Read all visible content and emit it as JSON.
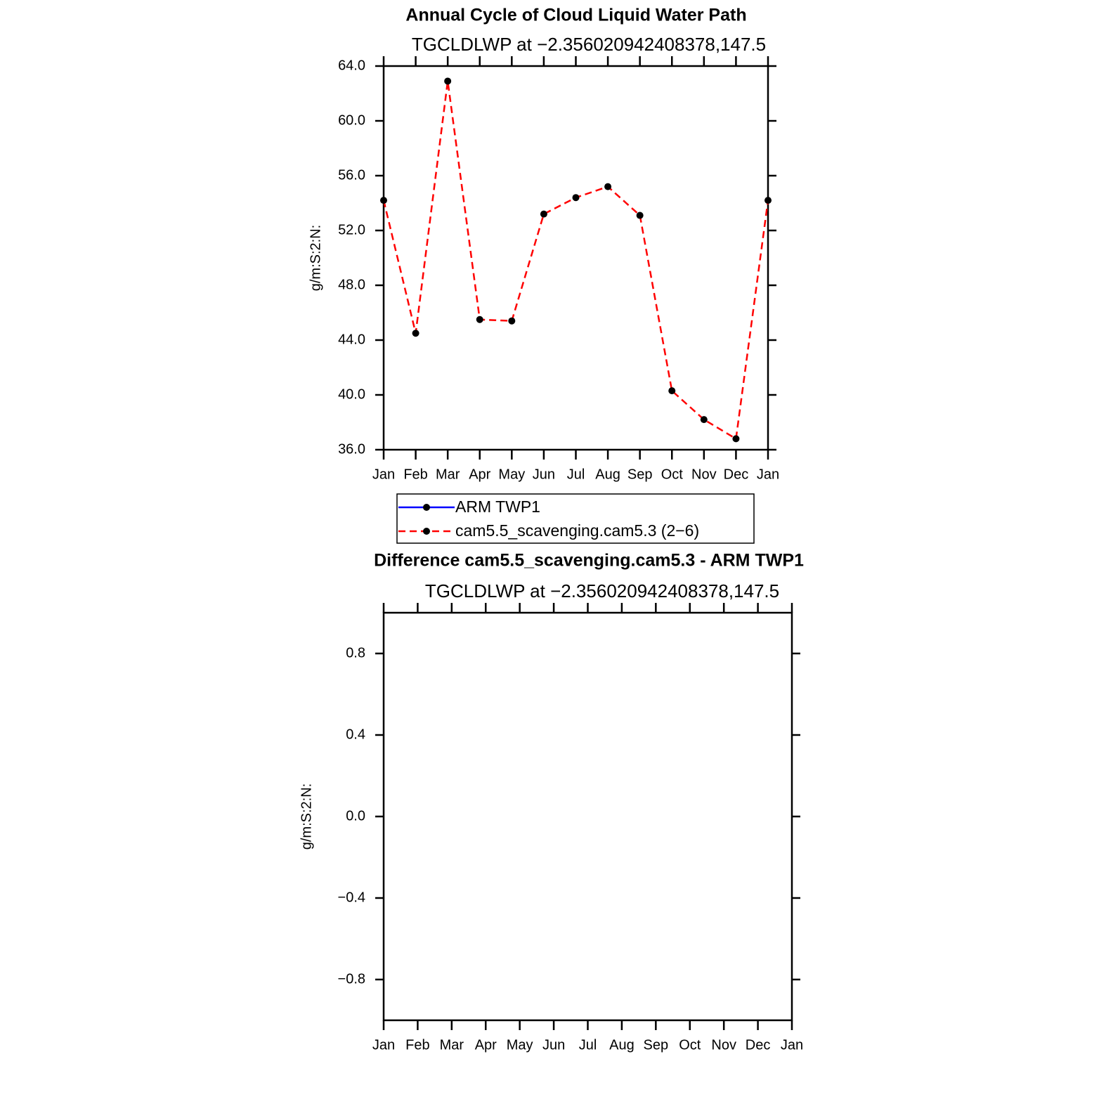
{
  "chart_data": [
    {
      "type": "line",
      "title": "Annual Cycle of Cloud Liquid Water Path",
      "subtitle": "TGCLDLWP at −2.356020942408378,147.5",
      "ylabel": "g/m:S:2:N:",
      "categories": [
        "Jan",
        "Feb",
        "Mar",
        "Apr",
        "May",
        "Jun",
        "Jul",
        "Aug",
        "Sep",
        "Oct",
        "Nov",
        "Dec",
        "Jan"
      ],
      "series": [
        {
          "name": "ARM TWP1",
          "color": "#0000ff",
          "linestyle": "solid",
          "values": [
            null,
            null,
            null,
            null,
            null,
            null,
            null,
            null,
            null,
            null,
            null,
            null,
            null
          ]
        },
        {
          "name": "cam5.5_scavenging.cam5.3 (2−6)",
          "color": "#ff0000",
          "linestyle": "dashed",
          "values": [
            54.2,
            44.5,
            62.9,
            45.5,
            45.4,
            53.2,
            54.4,
            55.2,
            53.1,
            40.3,
            38.2,
            36.8,
            54.2
          ]
        }
      ],
      "ylim": [
        36,
        64
      ],
      "yticks": [
        {
          "value": 36,
          "label": "36.0"
        },
        {
          "value": 40,
          "label": "40.0"
        },
        {
          "value": 44,
          "label": "44.0"
        },
        {
          "value": 48,
          "label": "48.0"
        },
        {
          "value": 52,
          "label": "52.0"
        },
        {
          "value": 56,
          "label": "56.0"
        },
        {
          "value": 60,
          "label": "60.0"
        },
        {
          "value": 64,
          "label": "64.0"
        }
      ],
      "legend": "bottom"
    },
    {
      "type": "line",
      "title": "Difference cam5.5_scavenging.cam5.3 - ARM TWP1",
      "subtitle": "TGCLDLWP at −2.356020942408378,147.5",
      "ylabel": "g/m:S:2:N:",
      "categories": [
        "Jan",
        "Feb",
        "Mar",
        "Apr",
        "May",
        "Jun",
        "Jul",
        "Aug",
        "Sep",
        "Oct",
        "Nov",
        "Dec",
        "Jan"
      ],
      "ylim": [
        -1,
        1
      ],
      "yticks": [
        {
          "value": -0.8,
          "label": "−0.8"
        },
        {
          "value": -0.4,
          "label": "−0.4"
        },
        {
          "value": 0,
          "label": "0.0"
        },
        0.4,
        0.8
      ]
    }
  ]
}
